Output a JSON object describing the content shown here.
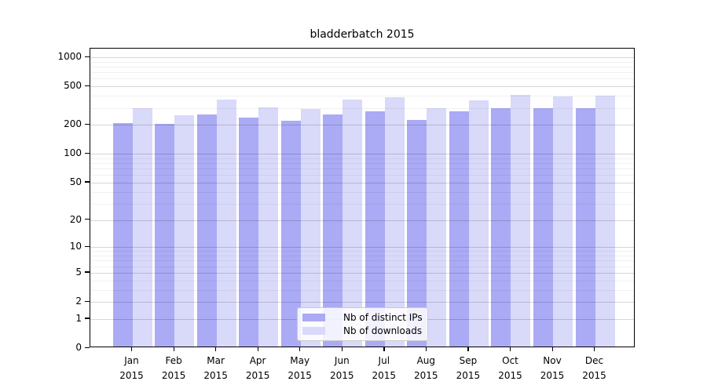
{
  "chart_data": {
    "type": "bar",
    "title": "bladderbatch 2015",
    "categories": [
      "Jan",
      "Feb",
      "Mar",
      "Apr",
      "May",
      "Jun",
      "Jul",
      "Aug",
      "Sep",
      "Oct",
      "Nov",
      "Dec"
    ],
    "year": "2015",
    "series": [
      {
        "name": "Nb of distinct IPs",
        "key": "distinct-ips",
        "color": "#aaaaf5",
        "values": [
          201,
          196,
          248,
          230,
          213,
          245,
          264,
          217,
          264,
          285,
          288,
          288
        ]
      },
      {
        "name": "Nb of downloads",
        "key": "downloads",
        "color": "#d9d9fa",
        "values": [
          287,
          242,
          352,
          290,
          282,
          352,
          372,
          287,
          345,
          394,
          379,
          386
        ]
      }
    ],
    "y_scale": "log10(value+1)",
    "y_ticks": [
      0,
      1,
      2,
      5,
      10,
      20,
      50,
      100,
      200,
      500,
      1000
    ],
    "y_minor_ticks": [
      3,
      4,
      6,
      7,
      8,
      9,
      30,
      40,
      60,
      70,
      80,
      90,
      300,
      400,
      600,
      700,
      800,
      900
    ],
    "ylim": [
      0,
      1000
    ],
    "grid": "horizontal",
    "legend_position": "lower-center-inside",
    "axis_color": "#000000"
  }
}
